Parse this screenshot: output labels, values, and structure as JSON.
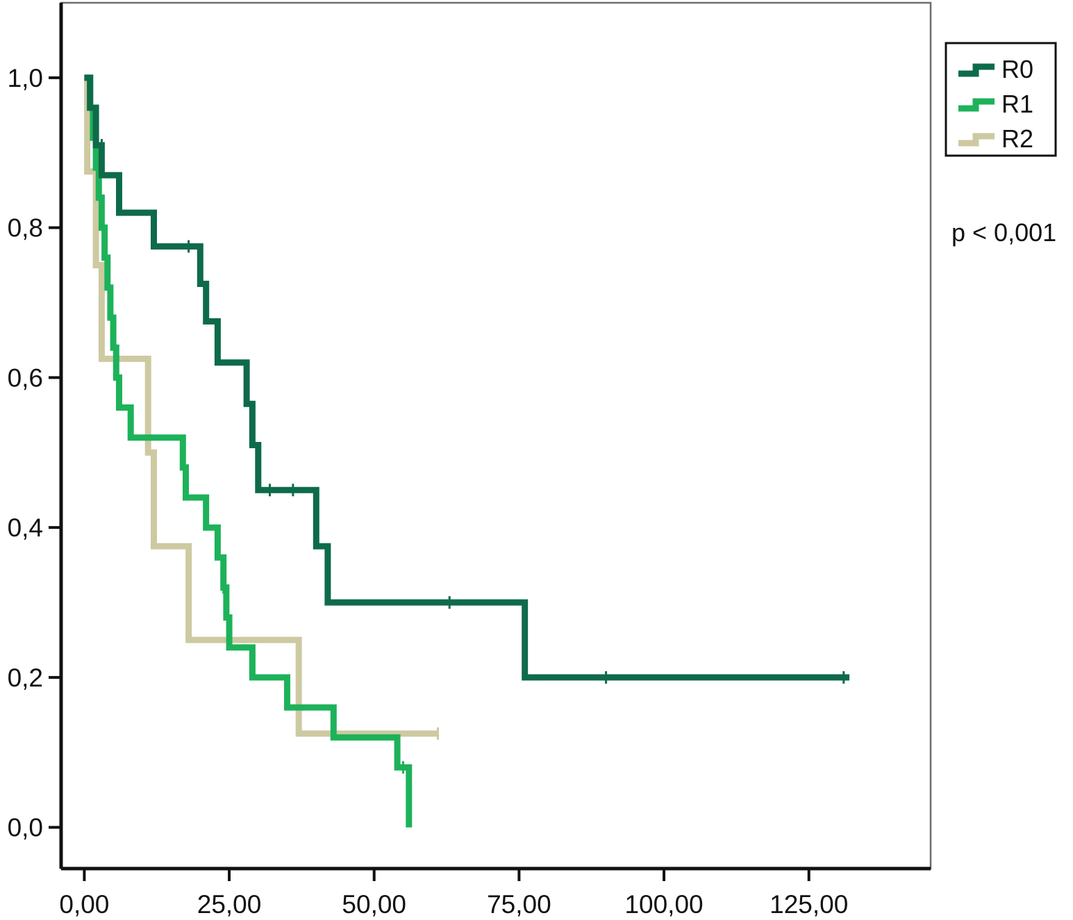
{
  "chart_data": {
    "type": "line",
    "title": "",
    "xlabel": "",
    "ylabel": "",
    "xlim": [
      -4,
      146
    ],
    "ylim": [
      -0.055,
      1.1
    ],
    "x_ticks": [
      0,
      25,
      50,
      75,
      100,
      125
    ],
    "x_tick_labels": [
      "0,00",
      "25,00",
      "50,00",
      "75,00",
      "100,00",
      "125,00"
    ],
    "y_ticks": [
      0.0,
      0.2,
      0.4,
      0.6,
      0.8,
      1.0
    ],
    "y_tick_labels": [
      "0,0",
      "0,2",
      "0,4",
      "0,6",
      "0,8",
      "1,0"
    ],
    "grid": false,
    "legend_position": "top-right-outside",
    "annotation": "p < 0,001",
    "series": [
      {
        "name": "R0",
        "color": "#0e6b4a",
        "steps": [
          [
            0,
            1.0
          ],
          [
            1,
            0.96
          ],
          [
            2,
            0.91
          ],
          [
            3,
            0.87
          ],
          [
            6,
            0.82
          ],
          [
            12,
            0.775
          ],
          [
            20,
            0.725
          ],
          [
            21,
            0.675
          ],
          [
            23,
            0.62
          ],
          [
            28,
            0.565
          ],
          [
            29,
            0.51
          ],
          [
            30,
            0.45
          ],
          [
            40,
            0.375
          ],
          [
            42,
            0.3
          ],
          [
            76,
            0.2
          ],
          [
            132,
            0.2
          ]
        ],
        "censored": [
          [
            3,
            0.91
          ],
          [
            18,
            0.775
          ],
          [
            32,
            0.45
          ],
          [
            36,
            0.45
          ],
          [
            63,
            0.3
          ],
          [
            90,
            0.2
          ],
          [
            131,
            0.2
          ]
        ]
      },
      {
        "name": "R1",
        "color": "#1db25a",
        "steps": [
          [
            0,
            1.0
          ],
          [
            1,
            0.96
          ],
          [
            1.5,
            0.92
          ],
          [
            2,
            0.88
          ],
          [
            2.5,
            0.84
          ],
          [
            3,
            0.8
          ],
          [
            3.5,
            0.76
          ],
          [
            4,
            0.72
          ],
          [
            4.5,
            0.68
          ],
          [
            5,
            0.64
          ],
          [
            5.5,
            0.6
          ],
          [
            6,
            0.56
          ],
          [
            8,
            0.52
          ],
          [
            17,
            0.48
          ],
          [
            17.5,
            0.44
          ],
          [
            21,
            0.4
          ],
          [
            23,
            0.36
          ],
          [
            24,
            0.32
          ],
          [
            24.5,
            0.28
          ],
          [
            25,
            0.24
          ],
          [
            29,
            0.2
          ],
          [
            35,
            0.16
          ],
          [
            43,
            0.12
          ],
          [
            54,
            0.08
          ],
          [
            56,
            0.0
          ]
        ],
        "censored": [
          [
            24,
            0.32
          ],
          [
            55,
            0.08
          ]
        ]
      },
      {
        "name": "R2",
        "color": "#cdc9a1",
        "steps": [
          [
            0,
            1.0
          ],
          [
            0.5,
            0.875
          ],
          [
            2,
            0.75
          ],
          [
            3,
            0.625
          ],
          [
            11,
            0.5
          ],
          [
            12,
            0.375
          ],
          [
            18,
            0.25
          ],
          [
            37,
            0.125
          ],
          [
            61,
            0.125
          ]
        ],
        "censored": [
          [
            61,
            0.125
          ]
        ]
      }
    ]
  }
}
